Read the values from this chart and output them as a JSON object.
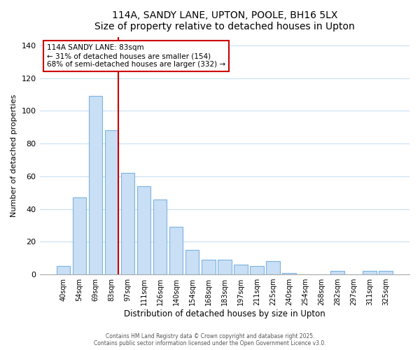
{
  "title": "114A, SANDY LANE, UPTON, POOLE, BH16 5LX",
  "subtitle": "Size of property relative to detached houses in Upton",
  "xlabel": "Distribution of detached houses by size in Upton",
  "ylabel": "Number of detached properties",
  "bar_labels": [
    "40sqm",
    "54sqm",
    "69sqm",
    "83sqm",
    "97sqm",
    "111sqm",
    "126sqm",
    "140sqm",
    "154sqm",
    "168sqm",
    "183sqm",
    "197sqm",
    "211sqm",
    "225sqm",
    "240sqm",
    "254sqm",
    "268sqm",
    "282sqm",
    "297sqm",
    "311sqm",
    "325sqm"
  ],
  "bar_values": [
    5,
    47,
    109,
    88,
    62,
    54,
    46,
    29,
    15,
    9,
    9,
    6,
    5,
    8,
    1,
    0,
    0,
    2,
    0,
    2,
    2
  ],
  "bar_color": "#c8dff5",
  "bar_edge_color": "#7cb4e0",
  "vline_index": 3,
  "vline_color": "#cc0000",
  "annotation_title": "114A SANDY LANE: 83sqm",
  "annotation_line1": "← 31% of detached houses are smaller (154)",
  "annotation_line2": "68% of semi-detached houses are larger (332) →",
  "annotation_box_color": "#ffffff",
  "annotation_box_edge": "#cc0000",
  "ylim": [
    0,
    145
  ],
  "yticks": [
    0,
    20,
    40,
    60,
    80,
    100,
    120,
    140
  ],
  "footer1": "Contains HM Land Registry data © Crown copyright and database right 2025.",
  "footer2": "Contains public sector information licensed under the Open Government Licence v3.0.",
  "background_color": "#ffffff",
  "grid_color": "#c8dff5"
}
